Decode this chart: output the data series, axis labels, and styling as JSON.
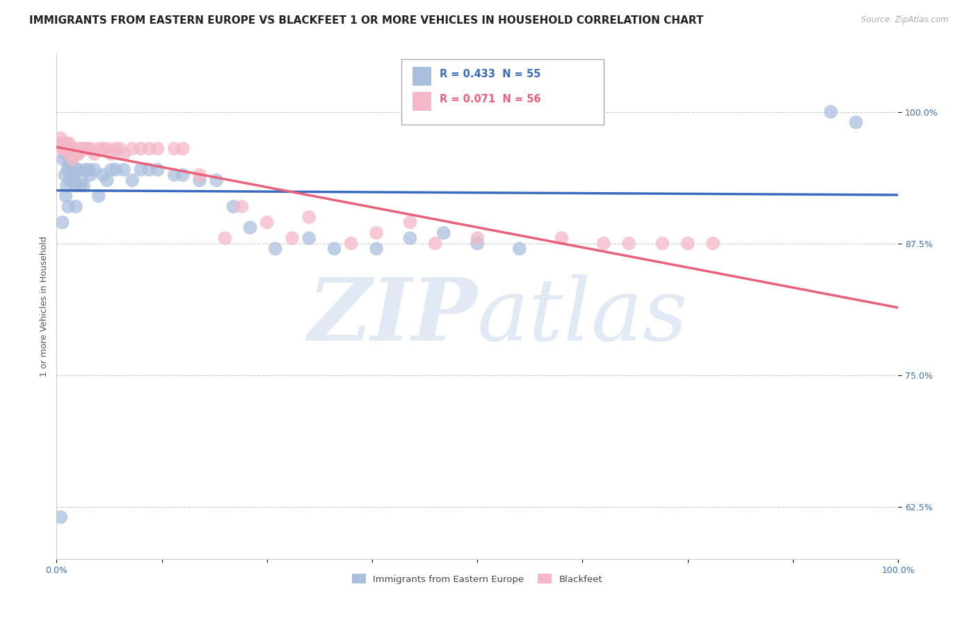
{
  "title": "IMMIGRANTS FROM EASTERN EUROPE VS BLACKFEET 1 OR MORE VEHICLES IN HOUSEHOLD CORRELATION CHART",
  "source": "Source: ZipAtlas.com",
  "ylabel": "1 or more Vehicles in Household",
  "watermark_zip": "ZIP",
  "watermark_atlas": "atlas",
  "legend_blue_label": "Immigrants from Eastern Europe",
  "legend_pink_label": "Blackfeet",
  "blue_r": "R = 0.433",
  "blue_n": "N = 55",
  "pink_r": "R = 0.071",
  "pink_n": "N = 56",
  "xlim": [
    0.0,
    1.0
  ],
  "ylim": [
    0.575,
    1.055
  ],
  "yticks": [
    0.625,
    0.75,
    0.875,
    1.0
  ],
  "ytick_labels": [
    "62.5%",
    "75.0%",
    "87.5%",
    "100.0%"
  ],
  "xticks": [
    0.0,
    0.125,
    0.25,
    0.375,
    0.5,
    0.625,
    0.75,
    0.875,
    1.0
  ],
  "xtick_labels": [
    "0.0%",
    "",
    "",
    "",
    "",
    "",
    "",
    "",
    "100.0%"
  ],
  "blue_scatter_x": [
    0.005,
    0.007,
    0.008,
    0.009,
    0.01,
    0.01,
    0.011,
    0.012,
    0.013,
    0.014,
    0.015,
    0.015,
    0.016,
    0.017,
    0.018,
    0.018,
    0.019,
    0.02,
    0.022,
    0.023,
    0.025,
    0.026,
    0.028,
    0.03,
    0.032,
    0.035,
    0.038,
    0.04,
    0.045,
    0.05,
    0.055,
    0.06,
    0.065,
    0.07,
    0.08,
    0.09,
    0.1,
    0.11,
    0.12,
    0.14,
    0.15,
    0.17,
    0.19,
    0.21,
    0.23,
    0.26,
    0.3,
    0.33,
    0.38,
    0.42,
    0.46,
    0.5,
    0.55,
    0.92,
    0.95
  ],
  "blue_scatter_y": [
    0.615,
    0.895,
    0.955,
    0.965,
    0.96,
    0.94,
    0.92,
    0.93,
    0.945,
    0.91,
    0.95,
    0.96,
    0.935,
    0.965,
    0.955,
    0.945,
    0.935,
    0.94,
    0.93,
    0.91,
    0.945,
    0.945,
    0.93,
    0.935,
    0.93,
    0.945,
    0.945,
    0.94,
    0.945,
    0.92,
    0.94,
    0.935,
    0.945,
    0.945,
    0.945,
    0.935,
    0.945,
    0.945,
    0.945,
    0.94,
    0.94,
    0.935,
    0.935,
    0.91,
    0.89,
    0.87,
    0.88,
    0.87,
    0.87,
    0.88,
    0.885,
    0.875,
    0.87,
    1.0,
    0.99
  ],
  "pink_scatter_x": [
    0.005,
    0.006,
    0.007,
    0.008,
    0.009,
    0.01,
    0.011,
    0.012,
    0.013,
    0.014,
    0.015,
    0.015,
    0.017,
    0.018,
    0.019,
    0.02,
    0.022,
    0.024,
    0.026,
    0.028,
    0.03,
    0.032,
    0.035,
    0.038,
    0.04,
    0.045,
    0.05,
    0.055,
    0.06,
    0.065,
    0.07,
    0.075,
    0.08,
    0.09,
    0.1,
    0.11,
    0.12,
    0.14,
    0.15,
    0.17,
    0.2,
    0.22,
    0.25,
    0.28,
    0.3,
    0.35,
    0.38,
    0.42,
    0.45,
    0.5,
    0.6,
    0.65,
    0.68,
    0.72,
    0.75,
    0.78
  ],
  "pink_scatter_y": [
    0.975,
    0.97,
    0.965,
    0.97,
    0.965,
    0.97,
    0.965,
    0.97,
    0.965,
    0.965,
    0.97,
    0.96,
    0.96,
    0.965,
    0.955,
    0.965,
    0.965,
    0.96,
    0.96,
    0.965,
    0.965,
    0.965,
    0.965,
    0.965,
    0.965,
    0.96,
    0.965,
    0.965,
    0.965,
    0.96,
    0.965,
    0.965,
    0.96,
    0.965,
    0.965,
    0.965,
    0.965,
    0.965,
    0.965,
    0.94,
    0.88,
    0.91,
    0.895,
    0.88,
    0.9,
    0.875,
    0.885,
    0.895,
    0.875,
    0.88,
    0.88,
    0.875,
    0.875,
    0.875,
    0.875,
    0.875
  ],
  "blue_color": "#aabfdd",
  "pink_color": "#f4b8c8",
  "blue_line_color": "#3a6bbf",
  "pink_line_color": "#e8607a",
  "background_color": "#ffffff",
  "grid_color": "#cccccc",
  "title_fontsize": 11,
  "axis_fontsize": 9,
  "tick_fontsize": 9
}
